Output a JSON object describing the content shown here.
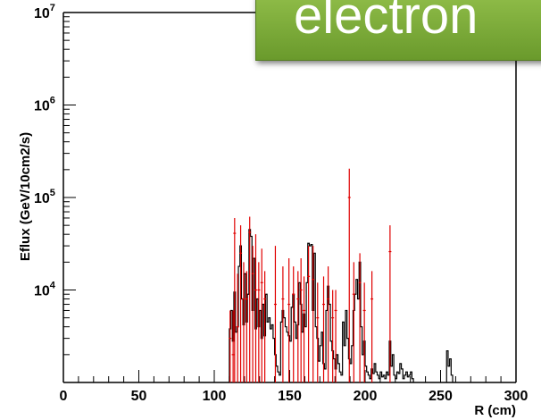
{
  "overlay_label": "electron",
  "chart_data": {
    "type": "histogram",
    "title": "",
    "xlabel": "R (cm)",
    "ylabel": "Eflux (GeV/10cm2/s)",
    "xlim": [
      0,
      300
    ],
    "ylim": [
      1000,
      10000000
    ],
    "yscale": "log",
    "x_ticks": [
      {
        "value": 0,
        "label": "0"
      },
      {
        "value": 50,
        "label": "50"
      },
      {
        "value": 100,
        "label": "100"
      },
      {
        "value": 150,
        "label": "150"
      },
      {
        "value": 200,
        "label": "200"
      },
      {
        "value": 250,
        "label": "250"
      },
      {
        "value": 300,
        "label": "300"
      }
    ],
    "y_ticks": [
      {
        "value": 10000,
        "base": "10",
        "exp": "4"
      },
      {
        "value": 100000,
        "base": "10",
        "exp": "5"
      },
      {
        "value": 1000000,
        "base": "10",
        "exp": "6"
      },
      {
        "value": 10000000,
        "base": "10",
        "exp": "7"
      }
    ],
    "bin_width": 1,
    "series": [
      {
        "style": "histogram-outline",
        "color": "#000000",
        "bins": [
          [
            110,
            3800
          ],
          [
            111,
            6000
          ],
          [
            112,
            2800
          ],
          [
            113,
            9500
          ],
          [
            114,
            3500
          ],
          [
            115,
            4000
          ],
          [
            116,
            18000
          ],
          [
            117,
            30000
          ],
          [
            118,
            8000
          ],
          [
            119,
            4200
          ],
          [
            120,
            15000
          ],
          [
            121,
            4500
          ],
          [
            122,
            9000
          ],
          [
            123,
            45000
          ],
          [
            124,
            38000
          ],
          [
            125,
            6000
          ],
          [
            126,
            22000
          ],
          [
            127,
            3800
          ],
          [
            128,
            8000
          ],
          [
            129,
            4000
          ],
          [
            130,
            6000
          ],
          [
            131,
            3000
          ],
          [
            132,
            7000
          ],
          [
            133,
            3200
          ],
          [
            134,
            9000
          ],
          [
            135,
            4500
          ],
          [
            136,
            5000
          ],
          [
            137,
            3800
          ],
          [
            138,
            4200
          ],
          [
            139,
            3000
          ],
          [
            140,
            2000
          ],
          [
            141,
            1500
          ],
          [
            142,
            1300
          ],
          [
            143,
            1200
          ],
          [
            144,
            4500
          ],
          [
            145,
            6000
          ],
          [
            146,
            5000
          ],
          [
            147,
            4000
          ],
          [
            148,
            3500
          ],
          [
            149,
            3200
          ],
          [
            150,
            2800
          ],
          [
            151,
            6500
          ],
          [
            152,
            9000
          ],
          [
            153,
            4500
          ],
          [
            154,
            3000
          ],
          [
            155,
            4200
          ],
          [
            156,
            12000
          ],
          [
            157,
            7000
          ],
          [
            158,
            3500
          ],
          [
            159,
            5500
          ],
          [
            160,
            4000
          ],
          [
            161,
            12000
          ],
          [
            162,
            32000
          ],
          [
            163,
            30000
          ],
          [
            164,
            31000
          ],
          [
            165,
            6000
          ],
          [
            166,
            25000
          ],
          [
            167,
            4000
          ],
          [
            168,
            3000
          ],
          [
            169,
            1700
          ],
          [
            170,
            2500
          ],
          [
            171,
            3500
          ],
          [
            172,
            1600
          ],
          [
            173,
            1400
          ],
          [
            174,
            6000
          ],
          [
            175,
            11000
          ],
          [
            176,
            7000
          ],
          [
            177,
            2800
          ],
          [
            178,
            2200
          ],
          [
            179,
            1800
          ],
          [
            180,
            1400
          ],
          [
            181,
            2000
          ],
          [
            182,
            1600
          ],
          [
            183,
            1300
          ],
          [
            184,
            1200
          ],
          [
            185,
            4500
          ],
          [
            186,
            2500
          ],
          [
            187,
            6000
          ],
          [
            188,
            3000
          ],
          [
            189,
            1800
          ],
          [
            190,
            1600
          ],
          [
            191,
            2500
          ],
          [
            192,
            6000
          ],
          [
            193,
            9000
          ],
          [
            194,
            13000
          ],
          [
            195,
            8000
          ],
          [
            196,
            20000
          ],
          [
            197,
            4000
          ],
          [
            198,
            2000
          ],
          [
            199,
            2800
          ],
          [
            200,
            1500
          ],
          [
            201,
            1300
          ],
          [
            202,
            1200
          ],
          [
            203,
            1100
          ],
          [
            204,
            1400
          ],
          [
            205,
            1250
          ],
          [
            206,
            1600
          ],
          [
            207,
            1300
          ],
          [
            208,
            1200
          ],
          [
            209,
            1100
          ],
          [
            210,
            1300
          ],
          [
            211,
            1150
          ],
          [
            212,
            1200
          ],
          [
            213,
            1100
          ],
          [
            214,
            1300
          ],
          [
            215,
            1200
          ],
          [
            216,
            2800
          ],
          [
            217,
            1500
          ],
          [
            218,
            2000
          ],
          [
            219,
            1200
          ],
          [
            220,
            1100
          ],
          [
            221,
            1300
          ],
          [
            222,
            1250
          ],
          [
            223,
            1600
          ],
          [
            224,
            1400
          ],
          [
            225,
            1100
          ],
          [
            226,
            1200
          ],
          [
            227,
            1300
          ],
          [
            228,
            1150
          ],
          [
            229,
            1200
          ],
          [
            230,
            1300
          ],
          [
            231,
            1100
          ],
          [
            254,
            2200
          ],
          [
            255,
            1500
          ],
          [
            256,
            1800
          ],
          [
            257,
            1200
          ]
        ]
      },
      {
        "style": "error-bars",
        "color": "#e00000",
        "points": [
          {
            "x": 110,
            "y": 3000,
            "lo": 1000,
            "hi": 6000
          },
          {
            "x": 112,
            "y": 2000,
            "lo": 1000,
            "hi": 6000
          },
          {
            "x": 113,
            "y": 41000,
            "lo": 1000,
            "hi": 60000
          },
          {
            "x": 115,
            "y": 4000,
            "lo": 1000,
            "hi": 15000
          },
          {
            "x": 117,
            "y": 25000,
            "lo": 1000,
            "hi": 50000
          },
          {
            "x": 119,
            "y": 8000,
            "lo": 1000,
            "hi": 20000
          },
          {
            "x": 121,
            "y": 8000,
            "lo": 1000,
            "hi": 16000
          },
          {
            "x": 123,
            "y": 42000,
            "lo": 1000,
            "hi": 62000
          },
          {
            "x": 125,
            "y": 15000,
            "lo": 1000,
            "hi": 30000
          },
          {
            "x": 127,
            "y": 10000,
            "lo": 1000,
            "hi": 40000
          },
          {
            "x": 129,
            "y": 10000,
            "lo": 1000,
            "hi": 20000
          },
          {
            "x": 131,
            "y": 12000,
            "lo": 1000,
            "hi": 28000
          },
          {
            "x": 133,
            "y": 8000,
            "lo": 1000,
            "hi": 16000
          },
          {
            "x": 140,
            "y": 7000,
            "lo": 1000,
            "hi": 30000
          },
          {
            "x": 145,
            "y": 8000,
            "lo": 1000,
            "hi": 18000
          },
          {
            "x": 149,
            "y": 7000,
            "lo": 1000,
            "hi": 22000
          },
          {
            "x": 152,
            "y": 9000,
            "lo": 1000,
            "hi": 18000
          },
          {
            "x": 155,
            "y": 8000,
            "lo": 1000,
            "hi": 16000
          },
          {
            "x": 157,
            "y": 10000,
            "lo": 1000,
            "hi": 22000
          },
          {
            "x": 159,
            "y": 6000,
            "lo": 1000,
            "hi": 14000
          },
          {
            "x": 162,
            "y": 14000,
            "lo": 1000,
            "hi": 30000
          },
          {
            "x": 165,
            "y": 13000,
            "lo": 1000,
            "hi": 30000
          },
          {
            "x": 168,
            "y": 5000,
            "lo": 1000,
            "hi": 12000
          },
          {
            "x": 172,
            "y": 7000,
            "lo": 1000,
            "hi": 14000
          },
          {
            "x": 175,
            "y": 8000,
            "lo": 1000,
            "hi": 18000
          },
          {
            "x": 178,
            "y": 5000,
            "lo": 1000,
            "hi": 10000
          },
          {
            "x": 180,
            "y": 6000,
            "lo": 1000,
            "hi": 10000
          },
          {
            "x": 189,
            "y": 100000,
            "lo": 1000,
            "hi": 205000
          },
          {
            "x": 192,
            "y": 9000,
            "lo": 1000,
            "hi": 20000
          },
          {
            "x": 196,
            "y": 12000,
            "lo": 1000,
            "hi": 25000
          },
          {
            "x": 199,
            "y": 6000,
            "lo": 1000,
            "hi": 12000
          },
          {
            "x": 204,
            "y": 8000,
            "lo": 1000,
            "hi": 16000
          },
          {
            "x": 216,
            "y": 26000,
            "lo": 1000,
            "hi": 50000
          }
        ]
      }
    ]
  }
}
